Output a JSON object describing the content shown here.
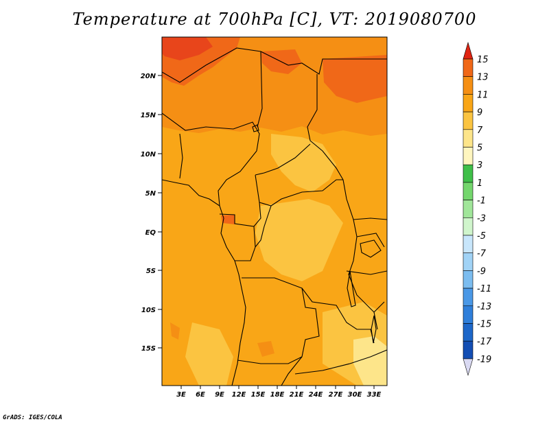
{
  "title": "Temperature at 700hPa [C], VT: 2019080700",
  "footer": "GrADS: IGES/COLA",
  "map": {
    "region": "Central/Southern Africa",
    "lon_labels": [
      "3E",
      "6E",
      "9E",
      "12E",
      "15E",
      "18E",
      "21E",
      "24E",
      "27E",
      "30E",
      "33E"
    ],
    "lat_labels": [
      "20N",
      "15N",
      "10N",
      "5N",
      "EQ",
      "5S",
      "10S",
      "15S"
    ]
  },
  "colorbar": {
    "levels": [
      "15",
      "13",
      "11",
      "9",
      "7",
      "5",
      "3",
      "1",
      "-1",
      "-3",
      "-5",
      "-7",
      "-9",
      "-11",
      "-13",
      "-15",
      "-17",
      "-19"
    ],
    "colors": [
      "#e8451b",
      "#f06818",
      "#f58f14",
      "#f9a617",
      "#fbc441",
      "#fde58a",
      "#fff6bf",
      "#3fbf49",
      "#74d66d",
      "#a1e69a",
      "#d0f5cc",
      "#c8e6fb",
      "#a1d3f6",
      "#7cbdf0",
      "#4a98e6",
      "#2f7fda",
      "#1d67c9",
      "#134eb3",
      "#0c2f8c",
      "#0a1a60"
    ],
    "over_color": "#e02412",
    "under_color": "#d9d9f2"
  }
}
